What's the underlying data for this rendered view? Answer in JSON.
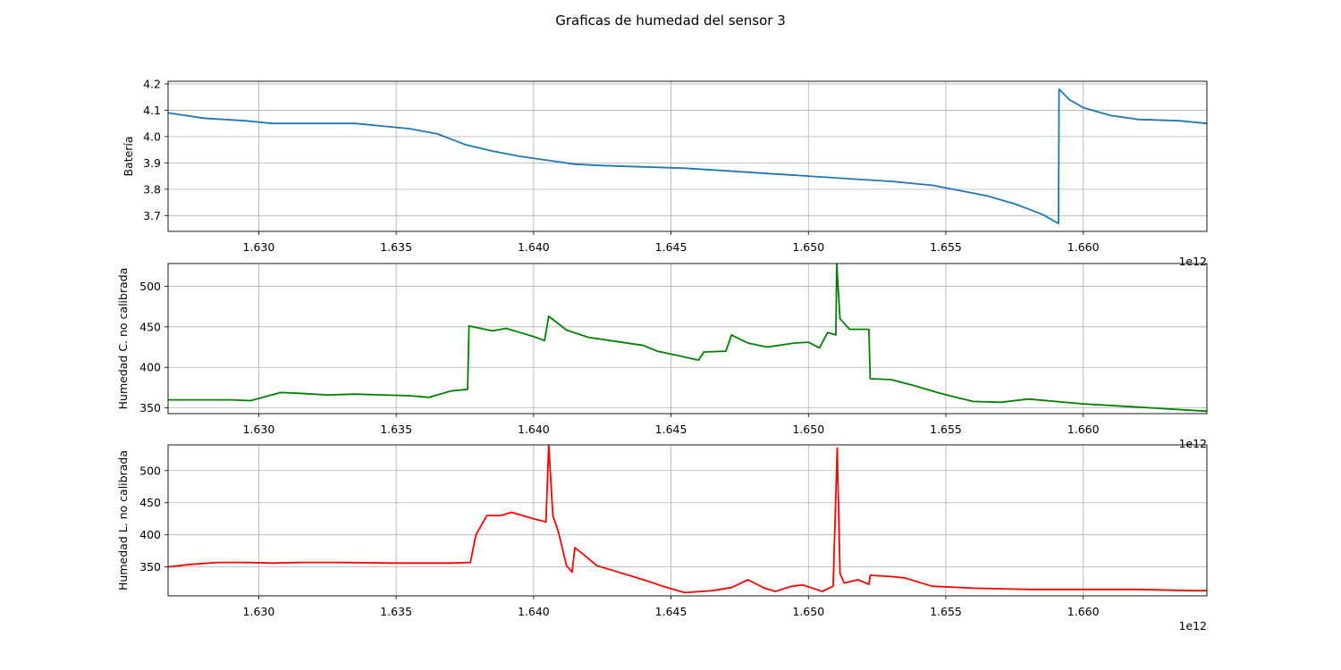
{
  "figure": {
    "title": "Graficas de humedad del sensor 3"
  },
  "chart_data": [
    {
      "type": "line",
      "ylabel": "Batería",
      "xlabel": "",
      "color": "#1f77b4",
      "grid": true,
      "xlim": [
        1.6267,
        1.6645
      ],
      "ylim": [
        3.64,
        4.21
      ],
      "x_ticks": [
        1.63,
        1.635,
        1.64,
        1.645,
        1.65,
        1.655,
        1.66
      ],
      "x_tick_labels": [
        "1.630",
        "1.635",
        "1.640",
        "1.645",
        "1.650",
        "1.655",
        "1.660"
      ],
      "x_offset_text": "1e12",
      "y_ticks": [
        3.7,
        3.8,
        3.9,
        4.0,
        4.1,
        4.2
      ],
      "y_tick_labels": [
        "3.7",
        "3.8",
        "3.9",
        "4.0",
        "4.1",
        "4.2"
      ],
      "series": [
        {
          "x": [
            1.6267,
            1.628,
            1.6295,
            1.6305,
            1.632,
            1.6335,
            1.6345,
            1.6355,
            1.6365,
            1.6375,
            1.6385,
            1.6395,
            1.6405,
            1.6415,
            1.6425,
            1.644,
            1.6455,
            1.647,
            1.6485,
            1.65,
            1.6515,
            1.653,
            1.6545,
            1.6555,
            1.6565,
            1.6575,
            1.6585,
            1.6591,
            1.65912,
            1.6595,
            1.66,
            1.661,
            1.662,
            1.6635,
            1.6645
          ],
          "y": [
            4.09,
            4.07,
            4.06,
            4.05,
            4.05,
            4.05,
            4.04,
            4.03,
            4.01,
            3.97,
            3.945,
            3.925,
            3.91,
            3.895,
            3.89,
            3.885,
            3.88,
            3.87,
            3.86,
            3.85,
            3.84,
            3.83,
            3.815,
            3.795,
            3.775,
            3.745,
            3.705,
            3.67,
            4.18,
            4.14,
            4.11,
            4.08,
            4.065,
            4.06,
            4.05
          ]
        }
      ]
    },
    {
      "type": "line",
      "ylabel": "Humedad C. no calibrada",
      "xlabel": "",
      "color": "#008000",
      "grid": true,
      "xlim": [
        1.6267,
        1.6645
      ],
      "ylim": [
        343,
        528
      ],
      "x_ticks": [
        1.63,
        1.635,
        1.64,
        1.645,
        1.65,
        1.655,
        1.66
      ],
      "x_tick_labels": [
        "1.630",
        "1.635",
        "1.640",
        "1.645",
        "1.650",
        "1.655",
        "1.660"
      ],
      "x_offset_text": "1e12",
      "y_ticks": [
        350,
        400,
        450,
        500
      ],
      "y_tick_labels": [
        "350",
        "400",
        "450",
        "500"
      ],
      "series": [
        {
          "x": [
            1.6267,
            1.6275,
            1.629,
            1.6297,
            1.6308,
            1.6315,
            1.6325,
            1.6335,
            1.6345,
            1.6355,
            1.6362,
            1.637,
            1.6376,
            1.63765,
            1.6385,
            1.639,
            1.6395,
            1.64,
            1.6404,
            1.64055,
            1.6412,
            1.642,
            1.643,
            1.644,
            1.6445,
            1.6452,
            1.646,
            1.6462,
            1.647,
            1.6472,
            1.6478,
            1.6485,
            1.6495,
            1.65,
            1.6504,
            1.6507,
            1.651,
            1.65103,
            1.65115,
            1.6515,
            1.6522,
            1.65225,
            1.653,
            1.6538,
            1.6548,
            1.6555,
            1.656,
            1.657,
            1.658,
            1.66,
            1.6615,
            1.6625,
            1.6635,
            1.6645
          ],
          "y": [
            360,
            360,
            360,
            359,
            369,
            368,
            366,
            367,
            366,
            365,
            363,
            371,
            373,
            451,
            445,
            448,
            443,
            438,
            433,
            463,
            446,
            437,
            432,
            427,
            420,
            415,
            409,
            419,
            420,
            440,
            430,
            425,
            430,
            431,
            424,
            443,
            440,
            528,
            460,
            447,
            447,
            386,
            385,
            378,
            368,
            362,
            358,
            357,
            361,
            355,
            352,
            350,
            348,
            346
          ]
        }
      ]
    },
    {
      "type": "line",
      "ylabel": "Humedad L. no calibrada",
      "xlabel": "",
      "color": "#ff0000",
      "grid": true,
      "xlim": [
        1.6267,
        1.6645
      ],
      "ylim": [
        305,
        540
      ],
      "x_ticks": [
        1.63,
        1.635,
        1.64,
        1.645,
        1.65,
        1.655,
        1.66
      ],
      "x_tick_labels": [
        "1.630",
        "1.635",
        "1.640",
        "1.645",
        "1.650",
        "1.655",
        "1.660"
      ],
      "x_offset_text": "1e12",
      "y_ticks": [
        350,
        400,
        450,
        500
      ],
      "y_tick_labels": [
        "350",
        "400",
        "450",
        "500"
      ],
      "series": [
        {
          "x": [
            1.6267,
            1.6275,
            1.6285,
            1.6295,
            1.6305,
            1.6315,
            1.633,
            1.635,
            1.637,
            1.6377,
            1.6379,
            1.6383,
            1.6388,
            1.6392,
            1.64,
            1.64045,
            1.64055,
            1.6407,
            1.6409,
            1.6412,
            1.6414,
            1.6415,
            1.6418,
            1.6423,
            1.643,
            1.644,
            1.6447,
            1.6455,
            1.6465,
            1.6472,
            1.6478,
            1.6484,
            1.6488,
            1.6494,
            1.6498,
            1.6505,
            1.6509,
            1.65105,
            1.65115,
            1.6513,
            1.6518,
            1.6522,
            1.65225,
            1.653,
            1.6535,
            1.6545,
            1.656,
            1.658,
            1.66,
            1.662,
            1.664,
            1.6645
          ],
          "y": [
            350,
            354,
            357,
            357,
            356,
            357,
            357,
            356,
            356,
            357,
            400,
            430,
            430,
            435,
            425,
            420,
            540,
            430,
            405,
            352,
            342,
            380,
            370,
            352,
            343,
            330,
            320,
            310,
            313,
            318,
            330,
            317,
            312,
            320,
            322,
            312,
            320,
            535,
            340,
            325,
            330,
            323,
            337,
            335,
            333,
            320,
            317,
            315,
            315,
            315,
            313,
            313
          ]
        }
      ]
    }
  ]
}
